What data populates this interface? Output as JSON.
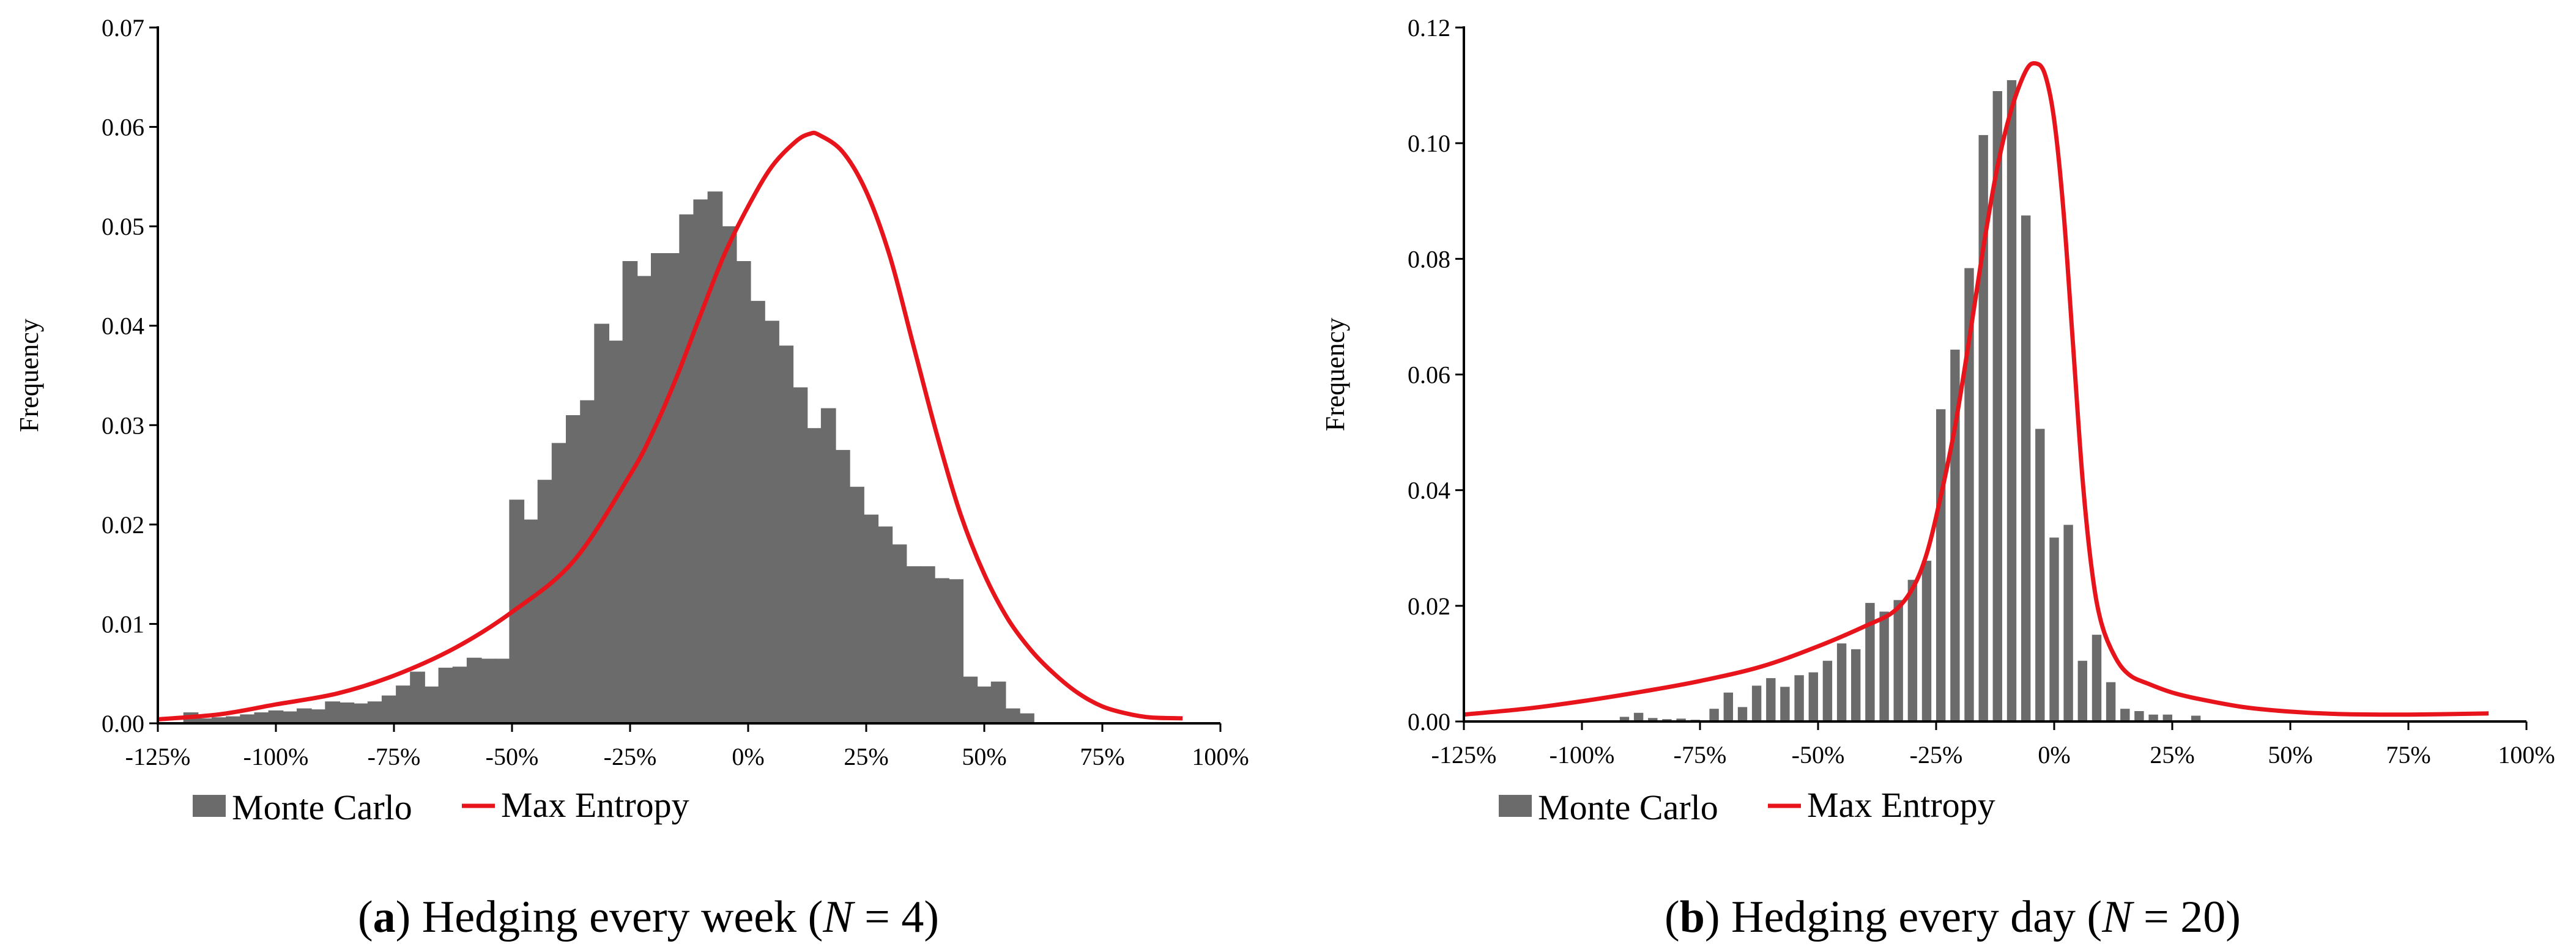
{
  "chart_data": [
    {
      "type": "bar",
      "caption": {
        "letter": "a",
        "text": " Hedging every week (",
        "var": "N",
        "eq": " = 4)"
      },
      "ylabel": "Frequency",
      "ylim": [
        0,
        0.07
      ],
      "yticks": [
        "0.00",
        "0.01",
        "0.02",
        "0.03",
        "0.04",
        "0.05",
        "0.06",
        "0.07"
      ],
      "ytick_values": [
        0,
        0.01,
        0.02,
        0.03,
        0.04,
        0.05,
        0.06,
        0.07
      ],
      "xlim": [
        -125,
        100
      ],
      "xticks": [
        "-125%",
        "-100%",
        "-75%",
        "-50%",
        "-25%",
        "0%",
        "25%",
        "50%",
        "75%",
        "100%"
      ],
      "xtick_values": [
        -125,
        -100,
        -75,
        -50,
        -25,
        0,
        25,
        50,
        75,
        100
      ],
      "bin_width": 3.2,
      "bars": [
        [
          -118,
          0.0011
        ],
        [
          -115,
          0.0005
        ],
        [
          -112,
          0.0006
        ],
        [
          -109,
          0.0007
        ],
        [
          -106,
          0.0009
        ],
        [
          -103,
          0.0011
        ],
        [
          -100,
          0.0013
        ],
        [
          -97,
          0.0012
        ],
        [
          -94,
          0.0015
        ],
        [
          -91,
          0.0014
        ],
        [
          -88,
          0.0022
        ],
        [
          -85,
          0.0021
        ],
        [
          -82,
          0.002
        ],
        [
          -79,
          0.0022
        ],
        [
          -76,
          0.0028
        ],
        [
          -73,
          0.0038
        ],
        [
          -70,
          0.0052
        ],
        [
          -67,
          0.0037
        ],
        [
          -64,
          0.0056
        ],
        [
          -61,
          0.0057
        ],
        [
          -58,
          0.0066
        ],
        [
          -55,
          0.0065
        ],
        [
          -52,
          0.0065
        ],
        [
          -49,
          0.0225
        ],
        [
          -46,
          0.0205
        ],
        [
          -43,
          0.0245
        ],
        [
          -40,
          0.0282
        ],
        [
          -37,
          0.031
        ],
        [
          -34,
          0.0325
        ],
        [
          -31,
          0.0402
        ],
        [
          -28,
          0.0385
        ],
        [
          -25,
          0.0465
        ],
        [
          -22,
          0.045
        ],
        [
          -19,
          0.0473
        ],
        [
          -16,
          0.0473
        ],
        [
          -13,
          0.0512
        ],
        [
          -10,
          0.0527
        ],
        [
          -7,
          0.0535
        ],
        [
          -4,
          0.05
        ],
        [
          -1,
          0.0465
        ],
        [
          2,
          0.0425
        ],
        [
          5,
          0.0405
        ],
        [
          8,
          0.038
        ],
        [
          11,
          0.0338
        ],
        [
          14,
          0.0297
        ],
        [
          17,
          0.0317
        ],
        [
          20,
          0.0275
        ],
        [
          23,
          0.0238
        ],
        [
          26,
          0.021
        ],
        [
          29,
          0.0198
        ],
        [
          32,
          0.018
        ],
        [
          35,
          0.0158
        ],
        [
          38,
          0.0158
        ],
        [
          41,
          0.0146
        ],
        [
          44,
          0.0145
        ],
        [
          47,
          0.0047
        ],
        [
          50,
          0.0037
        ],
        [
          53,
          0.0042
        ],
        [
          56,
          0.0015
        ],
        [
          59,
          0.001
        ]
      ],
      "curve": [
        [
          -125,
          0.0004
        ],
        [
          -112,
          0.0009
        ],
        [
          -100,
          0.0019
        ],
        [
          -87,
          0.003
        ],
        [
          -75,
          0.0048
        ],
        [
          -62,
          0.0076
        ],
        [
          -50,
          0.0112
        ],
        [
          -37,
          0.0163
        ],
        [
          -25,
          0.025
        ],
        [
          -20,
          0.0295
        ],
        [
          -15,
          0.035
        ],
        [
          -10,
          0.0412
        ],
        [
          -5,
          0.0472
        ],
        [
          0,
          0.052
        ],
        [
          5,
          0.056
        ],
        [
          10,
          0.0585
        ],
        [
          13,
          0.0593
        ],
        [
          15,
          0.0592
        ],
        [
          20,
          0.0575
        ],
        [
          25,
          0.0535
        ],
        [
          30,
          0.047
        ],
        [
          35,
          0.038
        ],
        [
          40,
          0.029
        ],
        [
          45,
          0.021
        ],
        [
          50,
          0.015
        ],
        [
          55,
          0.0105
        ],
        [
          60,
          0.0073
        ],
        [
          65,
          0.0049
        ],
        [
          70,
          0.003
        ],
        [
          75,
          0.0017
        ],
        [
          80,
          0.001
        ],
        [
          85,
          0.0006
        ],
        [
          92,
          0.0005
        ]
      ],
      "legend": [
        "Monte Carlo",
        "Max Entropy"
      ],
      "colors": {
        "bar": "#6b6b6b",
        "curve": "#e8141c"
      }
    },
    {
      "type": "bar",
      "caption": {
        "letter": "b",
        "text": " Hedging every day (",
        "var": "N",
        "eq": " = 20)"
      },
      "ylabel": "Frequency",
      "ylim": [
        0,
        0.12
      ],
      "yticks": [
        "0.00",
        "0.02",
        "0.04",
        "0.06",
        "0.08",
        "0.10",
        "0.12"
      ],
      "ytick_values": [
        0,
        0.02,
        0.04,
        0.06,
        0.08,
        0.1,
        0.12
      ],
      "xlim": [
        -125,
        100
      ],
      "xticks": [
        "-125%",
        "-100%",
        "-75%",
        "-50%",
        "-25%",
        "0%",
        "25%",
        "50%",
        "75%",
        "100%"
      ],
      "xtick_values": [
        -125,
        -100,
        -75,
        -50,
        -25,
        0,
        25,
        50,
        75,
        100
      ],
      "bin_width": 2.0,
      "bars": [
        [
          -91,
          0.0008
        ],
        [
          -88,
          0.0015
        ],
        [
          -85,
          0.0006
        ],
        [
          -82,
          0.0004
        ],
        [
          -79,
          0.0005
        ],
        [
          -76,
          0.0003
        ],
        [
          -72,
          0.0022
        ],
        [
          -69,
          0.005
        ],
        [
          -66,
          0.0025
        ],
        [
          -63,
          0.0062
        ],
        [
          -60,
          0.0075
        ],
        [
          -57,
          0.006
        ],
        [
          -54,
          0.008
        ],
        [
          -51,
          0.0085
        ],
        [
          -48,
          0.0105
        ],
        [
          -45,
          0.0135
        ],
        [
          -42,
          0.0125
        ],
        [
          -39,
          0.0205
        ],
        [
          -36,
          0.019
        ],
        [
          -33,
          0.021
        ],
        [
          -30,
          0.0245
        ],
        [
          -27,
          0.0278
        ],
        [
          -24,
          0.054
        ],
        [
          -21,
          0.0643
        ],
        [
          -18,
          0.0784
        ],
        [
          -15,
          0.1014
        ],
        [
          -12,
          0.109
        ],
        [
          -9,
          0.1109
        ],
        [
          -6,
          0.0875
        ],
        [
          -3,
          0.0506
        ],
        [
          0,
          0.0318
        ],
        [
          3,
          0.034
        ],
        [
          6,
          0.0105
        ],
        [
          9,
          0.015
        ],
        [
          12,
          0.0068
        ],
        [
          15,
          0.0022
        ],
        [
          18,
          0.0018
        ],
        [
          21,
          0.0012
        ],
        [
          24,
          0.0012
        ],
        [
          30,
          0.001
        ]
      ],
      "curve": [
        [
          -125,
          0.0012
        ],
        [
          -112,
          0.0022
        ],
        [
          -100,
          0.0035
        ],
        [
          -87,
          0.0052
        ],
        [
          -75,
          0.007
        ],
        [
          -62,
          0.0095
        ],
        [
          -50,
          0.013
        ],
        [
          -40,
          0.0165
        ],
        [
          -34,
          0.019
        ],
        [
          -30,
          0.023
        ],
        [
          -27,
          0.029
        ],
        [
          -24,
          0.039
        ],
        [
          -21,
          0.051
        ],
        [
          -18,
          0.066
        ],
        [
          -15,
          0.082
        ],
        [
          -12,
          0.096
        ],
        [
          -9,
          0.106
        ],
        [
          -6,
          0.1125
        ],
        [
          -4,
          0.1138
        ],
        [
          -2,
          0.112
        ],
        [
          0,
          0.104
        ],
        [
          2,
          0.088
        ],
        [
          4,
          0.065
        ],
        [
          6,
          0.042
        ],
        [
          8,
          0.026
        ],
        [
          10,
          0.017
        ],
        [
          13,
          0.011
        ],
        [
          16,
          0.008
        ],
        [
          20,
          0.0065
        ],
        [
          25,
          0.005
        ],
        [
          30,
          0.004
        ],
        [
          40,
          0.0025
        ],
        [
          50,
          0.0017
        ],
        [
          60,
          0.0013
        ],
        [
          75,
          0.0012
        ],
        [
          92,
          0.0014
        ]
      ],
      "legend": [
        "Monte Carlo",
        "Max Entropy"
      ],
      "colors": {
        "bar": "#6b6b6b",
        "curve": "#e8141c"
      }
    }
  ]
}
